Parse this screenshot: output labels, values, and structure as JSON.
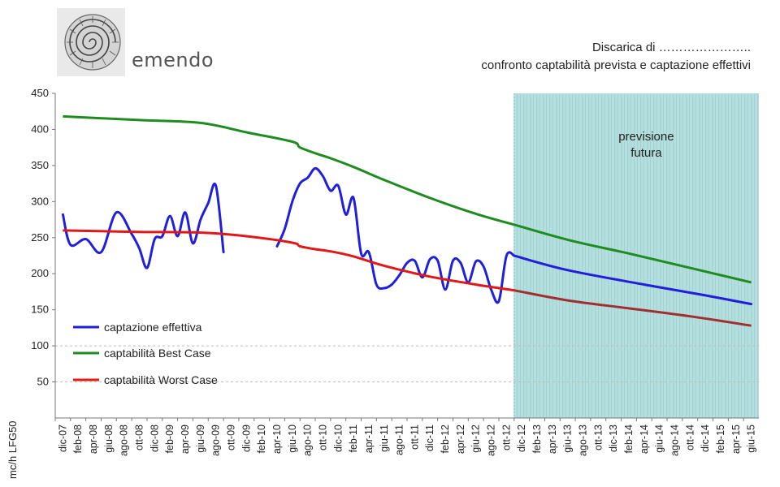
{
  "brand": {
    "name": "emendo",
    "logo_icon": "ammonite-fossil-icon"
  },
  "header": {
    "line1": "Discarica di …………………..",
    "line2": "confronto captabilità prevista e captazione effettivi"
  },
  "chart_data": {
    "type": "line",
    "ylabel": "mc/h LFG50",
    "ylim": [
      0,
      450
    ],
    "yticks": [
      50,
      100,
      150,
      200,
      250,
      300,
      350,
      400,
      450
    ],
    "grid": "horizontal-dashed-below-100",
    "legend_position": "bottom-left",
    "categories": [
      "dic-07",
      "feb-08",
      "apr-08",
      "giu-08",
      "ago-08",
      "ott-08",
      "dic-08",
      "feb-09",
      "apr-09",
      "giu-09",
      "ago-09",
      "ott-09",
      "dic-09",
      "feb-10",
      "apr-10",
      "giu-10",
      "ago-10",
      "ott-10",
      "dic-10",
      "feb-11",
      "apr-11",
      "giu-11",
      "ago-11",
      "ott-11",
      "dic-11",
      "feb-12",
      "apr-12",
      "giu-12",
      "ago-12",
      "ott-12",
      "dic-12",
      "feb-13",
      "apr-13",
      "giu-13",
      "ago-13",
      "ott-13",
      "dic-13",
      "feb-14",
      "apr-14",
      "giu-14",
      "ago-14",
      "ott-14",
      "dic-14",
      "feb-15",
      "apr-15",
      "giu-15"
    ],
    "forecast_region": {
      "from": "nov-12",
      "to": "giu-15",
      "label_line1": "previsione",
      "label_line2": "futura",
      "color": "#a8d8d8"
    },
    "series": [
      {
        "name": "captazione effettiva",
        "color": "#1f1fdc",
        "segments": [
          [
            [
              0,
              282
            ],
            [
              0.5,
              240
            ],
            [
              1.5,
              248
            ],
            [
              2.5,
              230
            ],
            [
              3.5,
              285
            ],
            [
              4.5,
              255
            ],
            [
              5,
              235
            ],
            [
              5.5,
              208
            ],
            [
              6,
              248
            ],
            [
              6.5,
              252
            ],
            [
              7,
              280
            ],
            [
              7.5,
              252
            ],
            [
              8,
              285
            ],
            [
              8.5,
              242
            ],
            [
              9,
              275
            ],
            [
              9.5,
              298
            ],
            [
              10,
              322
            ],
            [
              10.5,
              230
            ]
          ],
          [
            [
              14,
              238
            ],
            [
              14.5,
              262
            ],
            [
              15,
              300
            ],
            [
              15.5,
              325
            ],
            [
              16,
              333
            ],
            [
              16.5,
              346
            ],
            [
              17,
              335
            ],
            [
              17.5,
              315
            ],
            [
              18,
              322
            ],
            [
              18.5,
              282
            ],
            [
              19,
              305
            ],
            [
              19.5,
              228
            ],
            [
              20,
              230
            ],
            [
              20.5,
              185
            ],
            [
              21,
              180
            ],
            [
              21.5,
              185
            ],
            [
              22,
              198
            ],
            [
              22.5,
              215
            ],
            [
              23,
              218
            ],
            [
              23.5,
              195
            ],
            [
              24,
              220
            ],
            [
              24.5,
              218
            ],
            [
              25,
              178
            ],
            [
              25.5,
              218
            ],
            [
              26,
              215
            ],
            [
              26.5,
              188
            ],
            [
              27,
              217
            ],
            [
              27.5,
              210
            ],
            [
              28,
              178
            ],
            [
              28.5,
              162
            ],
            [
              29,
              225
            ],
            [
              29.5,
              225
            ]
          ],
          [
            [
              29.5,
              225
            ],
            [
              33,
              205
            ],
            [
              38,
              185
            ],
            [
              42,
              170
            ],
            [
              45,
              158
            ]
          ]
        ]
      },
      {
        "name": "captabilità Best Case",
        "color": "#1e8c1e",
        "points": [
          [
            0,
            418
          ],
          [
            5,
            413
          ],
          [
            9,
            409
          ],
          [
            12,
            396
          ],
          [
            15,
            383
          ],
          [
            15.5,
            375
          ],
          [
            16.5,
            367
          ],
          [
            17.5,
            360
          ],
          [
            19,
            348
          ],
          [
            21,
            330
          ],
          [
            24,
            305
          ],
          [
            27,
            283
          ],
          [
            29.5,
            268
          ],
          [
            33,
            247
          ],
          [
            37,
            228
          ],
          [
            41,
            208
          ],
          [
            45,
            188
          ]
        ]
      },
      {
        "name": "captabilità Worst Case",
        "color": "#e01818",
        "points": [
          [
            0,
            260
          ],
          [
            5,
            258
          ],
          [
            9,
            257
          ],
          [
            12,
            252
          ],
          [
            15,
            243
          ],
          [
            15.5,
            238
          ],
          [
            16.5,
            234
          ],
          [
            17.5,
            231
          ],
          [
            19,
            224
          ],
          [
            21,
            211
          ],
          [
            24,
            196
          ],
          [
            27,
            185
          ],
          [
            29.5,
            177
          ],
          [
            33,
            163
          ],
          [
            37,
            152
          ],
          [
            41,
            141
          ],
          [
            45,
            128
          ]
        ],
        "forecast_color": "#a03030"
      }
    ]
  }
}
